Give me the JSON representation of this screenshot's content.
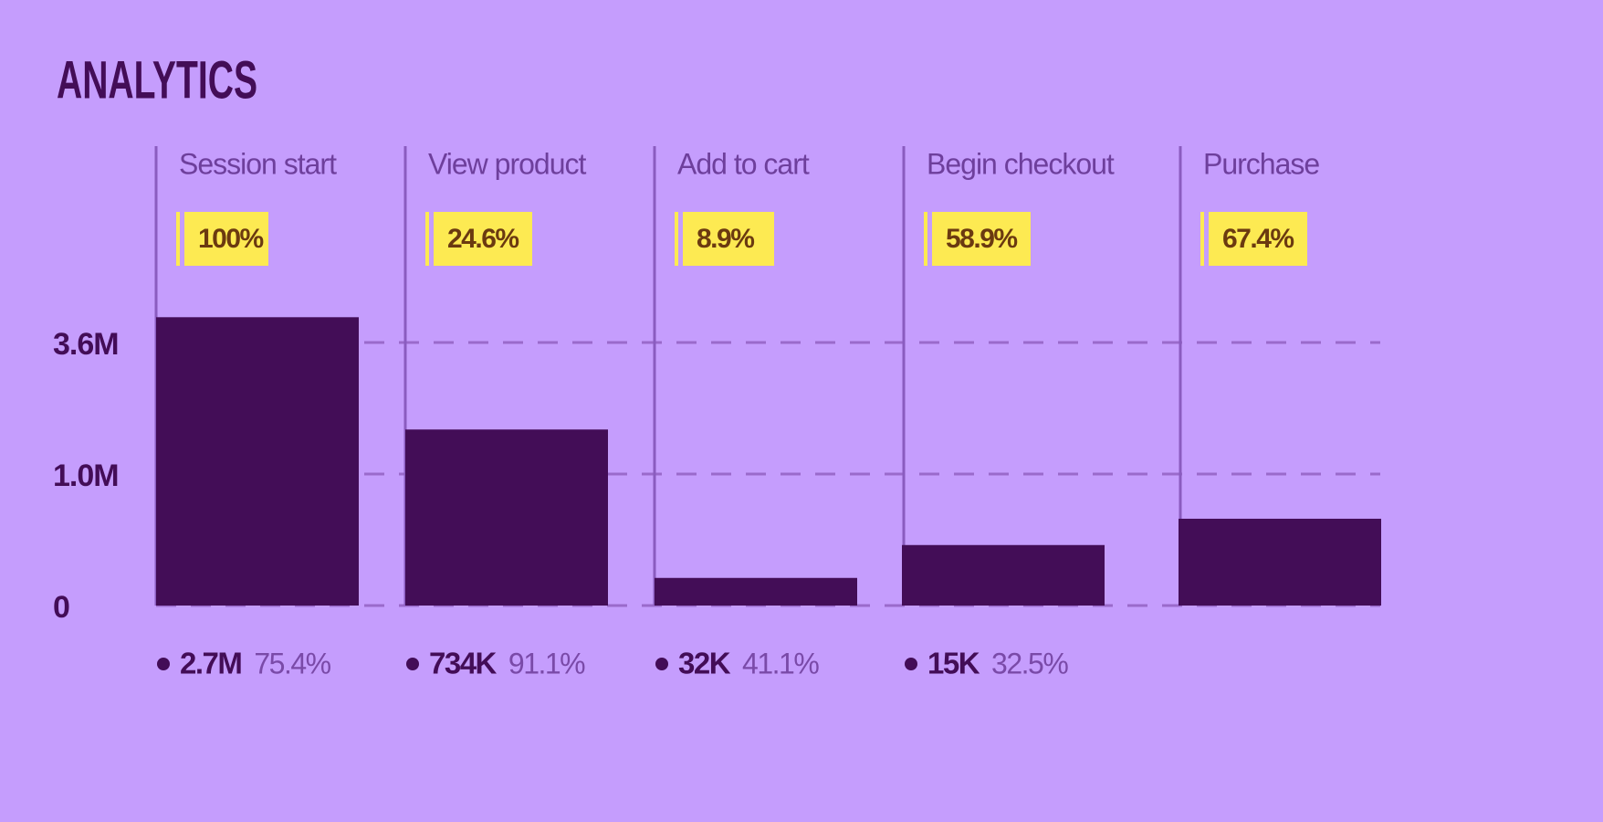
{
  "chart_data": {
    "type": "bar",
    "title": "ANALYTICS",
    "categories": [
      "Session start",
      "View product",
      "Add to cart",
      "Begin checkout",
      "Purchase"
    ],
    "values": [
      4100000,
      1880000,
      210000,
      460000,
      660000
    ],
    "color": "#430d57",
    "badges": [
      "100%",
      "24.6%",
      "8.9%",
      "58.9%",
      "67.4%"
    ],
    "footer_values": [
      "2.7M",
      "734K",
      "32K",
      "15K"
    ],
    "footer_rates": [
      "75.4%",
      "91.1%",
      "41.1%",
      "32.5%"
    ],
    "ylim": [
      0,
      7500000
    ],
    "yticks": [
      0,
      {
        "value": 1000000,
        "label": "1.0M"
      },
      {
        "value": 3600000,
        "label": "3.6M"
      }
    ],
    "grid": true
  }
}
